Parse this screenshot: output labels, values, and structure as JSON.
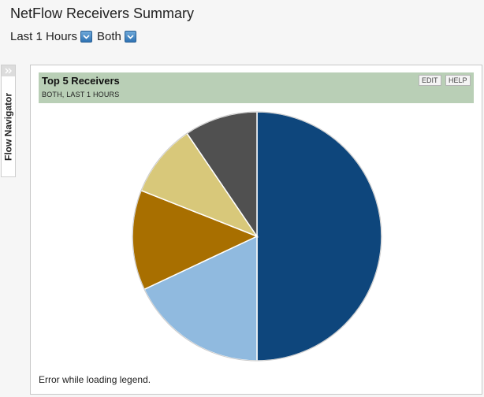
{
  "page": {
    "title": "NetFlow Receivers Summary"
  },
  "filters": {
    "time_range": "Last 1 Hours",
    "direction": "Both"
  },
  "flow_navigator": {
    "label": "Flow Navigator"
  },
  "resource": {
    "title": "Top 5 Receivers",
    "subtitle": "BOTH, LAST 1 HOURS",
    "edit_label": "EDIT",
    "help_label": "HELP",
    "legend_error": "Error while loading legend."
  },
  "colors": {
    "header_bg": "#b9cfb6",
    "dropdown_button": "#2f73b4"
  },
  "chart_data": {
    "type": "pie",
    "start": "top, clockwise",
    "values": [
      50,
      18,
      13,
      9.5,
      9.5
    ],
    "colors": [
      "#0e467c",
      "#90badf",
      "#a86f00",
      "#d8c87a",
      "#505050"
    ]
  }
}
